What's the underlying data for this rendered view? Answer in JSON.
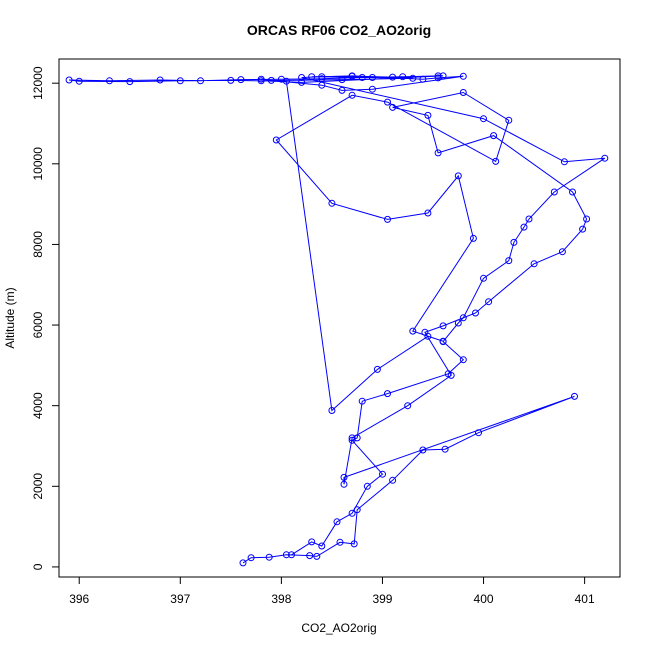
{
  "chart_data": {
    "type": "line",
    "title": "ORCAS RF06 CO2_AO2orig",
    "xlabel": "CO2_AO2orig",
    "ylabel": "Altitude (m)",
    "xlim": [
      395.8,
      401.35
    ],
    "ylim": [
      -250,
      12600
    ],
    "xticks": [
      396,
      397,
      398,
      399,
      400,
      401
    ],
    "yticks": [
      0,
      2000,
      4000,
      6000,
      8000,
      10000,
      12000
    ],
    "grid": false,
    "series_color": "#0000ff",
    "markers": "open-circle",
    "series": [
      {
        "x": [
          397.62,
          397.7,
          397.88,
          398.05,
          398.28,
          398.35,
          398.58,
          398.72,
          398.75,
          399.1,
          399.4,
          399.62,
          399.95,
          400.9,
          398.62,
          398.62,
          398.7,
          399.25,
          399.68,
          399.42,
          399.6,
          399.92,
          400.05,
          400.5,
          400.78,
          400.98,
          401.02,
          400.88,
          400.1,
          399.55,
          399.45,
          399.1,
          399.8,
          400.25,
          400.12,
          399.05,
          398.7,
          397.95,
          398.5,
          399.05,
          399.45,
          399.75,
          399.9,
          399.3,
          399.6,
          399.45,
          398.95,
          398.5,
          398.05,
          397.5,
          397.0,
          396.5,
          396.0,
          395.9,
          396.3,
          396.8,
          397.2,
          397.6,
          398.0,
          398.4,
          398.8,
          399.2,
          399.6,
          398.2,
          397.8,
          398.6,
          399.3,
          398.9,
          398.3,
          398.7,
          399.1,
          399.55
        ],
        "y": [
          100,
          230,
          240,
          300,
          280,
          260,
          610,
          570,
          1420,
          2150,
          2900,
          2920,
          3330,
          4230,
          2220,
          2050,
          3200,
          4000,
          4750,
          5820,
          5980,
          6300,
          6580,
          7520,
          7820,
          8380,
          8630,
          9300,
          10700,
          10270,
          11200,
          11400,
          11770,
          11080,
          10060,
          11530,
          11700,
          10590,
          9020,
          8620,
          8780,
          9700,
          8150,
          5850,
          5600,
          5720,
          4900,
          3880,
          12050,
          12070,
          12060,
          12040,
          12050,
          12080,
          12060,
          12080,
          12060,
          12090,
          12100,
          12110,
          12140,
          12160,
          12180,
          12020,
          12060,
          12090,
          12120,
          12140,
          12160,
          12170,
          12150,
          12180
        ]
      },
      {
        "x": [
          398.1,
          398.3,
          398.4,
          398.55,
          398.7,
          398.85,
          399.0,
          398.7,
          398.75,
          398.8,
          399.05,
          399.65,
          399.8,
          399.6,
          399.75,
          399.8,
          400.0,
          400.25,
          400.3,
          400.4,
          400.45,
          400.7,
          401.2,
          400.8,
          400.0,
          398.2,
          398.4,
          398.7,
          399.4,
          399.55,
          399.8,
          398.9,
          398.6,
          398.4,
          397.9,
          397.8
        ],
        "y": [
          300,
          620,
          520,
          1120,
          1330,
          2000,
          2300,
          3140,
          3200,
          4110,
          4300,
          4790,
          5140,
          5590,
          6050,
          6180,
          7160,
          7600,
          8050,
          8430,
          8630,
          9300,
          10140,
          10050,
          11120,
          12140,
          12160,
          12180,
          12100,
          12130,
          12170,
          11850,
          11820,
          11950,
          12070,
          12100
        ]
      }
    ]
  }
}
